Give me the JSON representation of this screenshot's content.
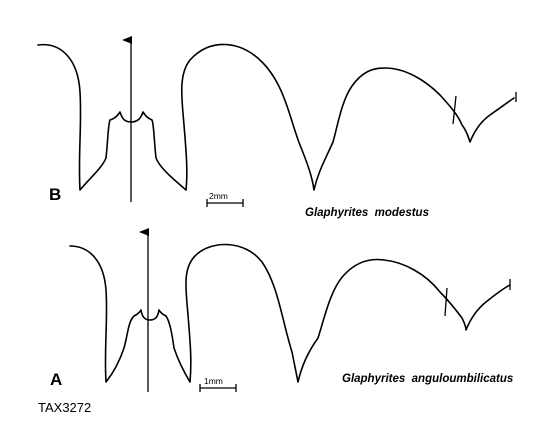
{
  "figure": {
    "panel_b": {
      "letter": "B",
      "scale_label": "2mm",
      "species": "Glaphyrites  modestus"
    },
    "panel_a": {
      "letter": "A",
      "scale_label": "1mm",
      "species": "Glaphyrites  anguloumbilicatus"
    },
    "specimen_id": "TAX3272"
  }
}
